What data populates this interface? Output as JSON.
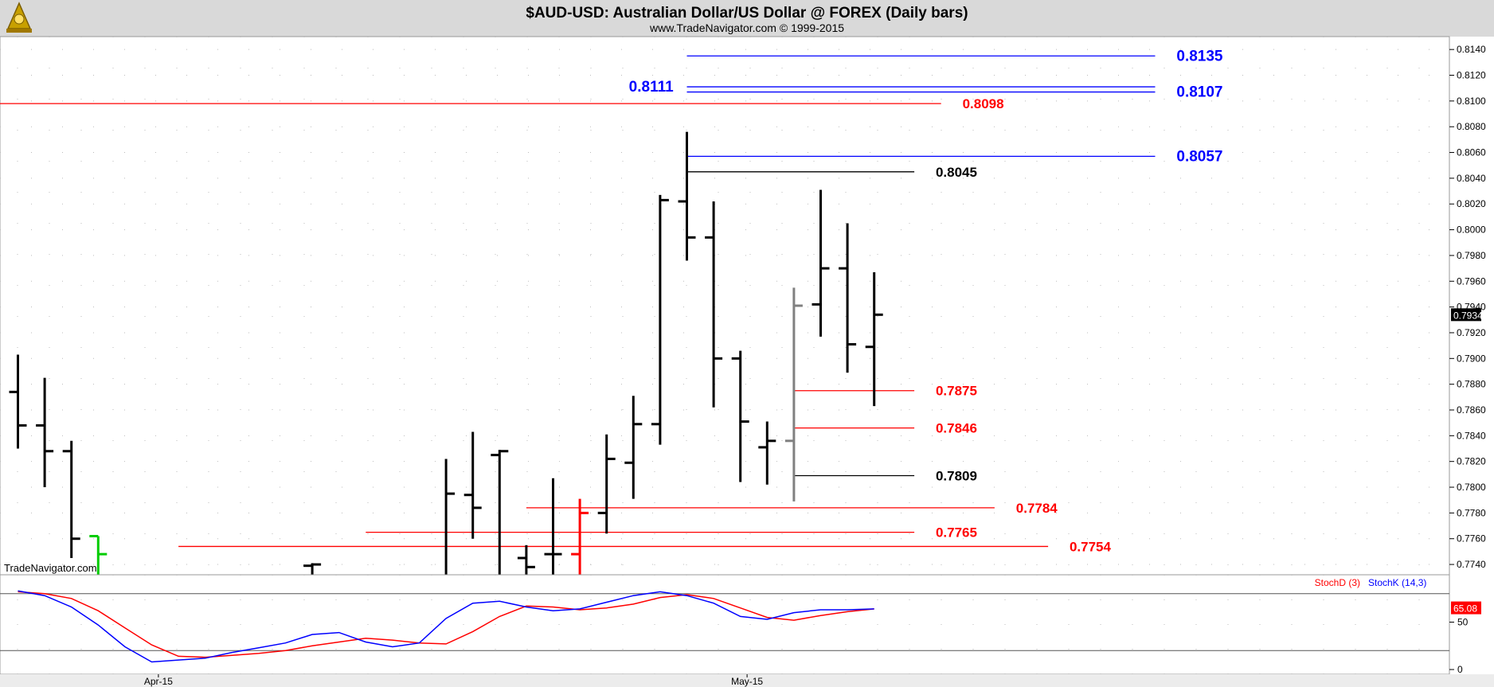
{
  "title": "$AUD-USD:  Australian Dollar/US Dollar @ FOREX  (Daily bars)",
  "subtitle": "www.TradeNavigator.com © 1999-2015",
  "watermark": "TradeNavigator.com",
  "colors": {
    "up": "#000000",
    "down": "#000000",
    "red": "#ff0000",
    "blue": "#0000ff",
    "gray": "#808080",
    "green": "#00cc00",
    "header_bg": "#d9d9d9",
    "grid": "#bbbbbb",
    "logo": "#c8a000"
  },
  "chart_data": [
    {
      "type": "ohlc",
      "title": "$AUD-USD:  Australian Dollar/US Dollar @ FOREX  (Daily bars)",
      "ylim": [
        0.7732,
        0.815
      ],
      "y_ticks": [
        "0.7740",
        "0.7760",
        "0.7780",
        "0.7800",
        "0.7820",
        "0.7840",
        "0.7860",
        "0.7880",
        "0.7900",
        "0.7920",
        "0.7940",
        "0.7960",
        "0.7980",
        "0.8000",
        "0.8020",
        "0.8040",
        "0.8060",
        "0.8080",
        "0.8100",
        "0.8120",
        "0.8140"
      ],
      "x_labels": [
        {
          "label": "Apr-15",
          "bar": 5.25
        },
        {
          "label": "May-15",
          "bar": 27.25
        }
      ],
      "last_price": "0.7934",
      "bars": [
        {
          "i": 0,
          "o": 0.7874,
          "h": 0.7903,
          "l": 0.783,
          "c": 0.7848
        },
        {
          "i": 1,
          "o": 0.7848,
          "h": 0.7885,
          "l": 0.78,
          "c": 0.7828
        },
        {
          "i": 2,
          "o": 0.7828,
          "h": 0.7836,
          "l": 0.7745,
          "c": 0.776
        },
        {
          "i": 3,
          "o": 0.7762,
          "h": 0.7762,
          "l": 0.7725,
          "c": 0.7748,
          "color": "green"
        },
        {
          "i": 11,
          "o": 0.7739,
          "h": 0.7741,
          "l": 0.772,
          "c": 0.774
        },
        {
          "i": 16,
          "o": 0.773,
          "h": 0.7822,
          "l": 0.7725,
          "c": 0.7795
        },
        {
          "i": 17,
          "o": 0.7794,
          "h": 0.7843,
          "l": 0.776,
          "c": 0.7784
        },
        {
          "i": 18,
          "o": 0.7825,
          "h": 0.7829,
          "l": 0.7725,
          "c": 0.7828
        },
        {
          "i": 19,
          "o": 0.7745,
          "h": 0.7755,
          "l": 0.772,
          "c": 0.7738
        },
        {
          "i": 20,
          "o": 0.7748,
          "h": 0.7807,
          "l": 0.7725,
          "c": 0.7748
        },
        {
          "i": 21,
          "o": 0.7748,
          "h": 0.7791,
          "l": 0.773,
          "c": 0.778,
          "color": "red"
        },
        {
          "i": 22,
          "o": 0.778,
          "h": 0.7841,
          "l": 0.7764,
          "c": 0.7822
        },
        {
          "i": 23,
          "o": 0.7819,
          "h": 0.7871,
          "l": 0.7791,
          "c": 0.7849
        },
        {
          "i": 24,
          "o": 0.7849,
          "h": 0.8027,
          "l": 0.7833,
          "c": 0.8023
        },
        {
          "i": 25,
          "o": 0.8022,
          "h": 0.8076,
          "l": 0.7976,
          "c": 0.7994
        },
        {
          "i": 26,
          "o": 0.7994,
          "h": 0.8022,
          "l": 0.7862,
          "c": 0.79
        },
        {
          "i": 27,
          "o": 0.79,
          "h": 0.7906,
          "l": 0.7804,
          "c": 0.7851
        },
        {
          "i": 28,
          "o": 0.7831,
          "h": 0.7851,
          "l": 0.7802,
          "c": 0.7836
        },
        {
          "i": 29,
          "o": 0.7836,
          "h": 0.7955,
          "l": 0.7789,
          "c": 0.7941,
          "color": "gray"
        },
        {
          "i": 30,
          "o": 0.7942,
          "h": 0.8031,
          "l": 0.7917,
          "c": 0.797
        },
        {
          "i": 31,
          "o": 0.797,
          "h": 0.8005,
          "l": 0.7889,
          "c": 0.7911
        },
        {
          "i": 32,
          "o": 0.7909,
          "h": 0.7967,
          "l": 0.7863,
          "c": 0.7934
        }
      ],
      "levels": [
        {
          "value": 0.8135,
          "label": "0.8135",
          "color": "blue",
          "from": 25,
          "to": 42.5,
          "label_at": 43.3
        },
        {
          "value": 0.8111,
          "label": "0.8111",
          "color": "blue",
          "from": 25,
          "to": 42.5,
          "label_side": "left",
          "label_at": 24.5
        },
        {
          "value": 0.8107,
          "label": "0.8107",
          "color": "blue",
          "from": 25,
          "to": 42.5,
          "label_at": 43.3
        },
        {
          "value": 0.8098,
          "label": "0.8098",
          "color": "red",
          "from": -1,
          "to": 34.5,
          "label_at": 35.3
        },
        {
          "value": 0.8057,
          "label": "0.8057",
          "color": "blue",
          "from": 25,
          "to": 42.5,
          "label_at": 43.3
        },
        {
          "value": 0.8045,
          "label": "0.8045",
          "color": "black",
          "from": 25,
          "to": 33.5,
          "label_at": 34.3
        },
        {
          "value": 0.7875,
          "label": "0.7875",
          "color": "red",
          "from": 29,
          "to": 33.5,
          "label_at": 34.3
        },
        {
          "value": 0.7846,
          "label": "0.7846",
          "color": "red",
          "from": 29,
          "to": 33.5,
          "label_at": 34.3
        },
        {
          "value": 0.7809,
          "label": "0.7809",
          "color": "black",
          "from": 29,
          "to": 33.5,
          "label_at": 34.3
        },
        {
          "value": 0.7784,
          "label": "0.7784",
          "color": "red",
          "from": 19,
          "to": 36.5,
          "label_at": 37.3
        },
        {
          "value": 0.7765,
          "label": "0.7765",
          "color": "red",
          "from": 13,
          "to": 33.5,
          "label_at": 34.3
        },
        {
          "value": 0.7754,
          "label": "0.7754",
          "color": "red",
          "from": 6,
          "to": 38.5,
          "label_at": 39.3
        }
      ]
    },
    {
      "type": "line",
      "legend": [
        "StochD (3)",
        "StochK (14,3)"
      ],
      "ylim": [
        -5,
        100
      ],
      "y_ticks": [
        "0",
        "50"
      ],
      "ref_lines": [
        20,
        80
      ],
      "last_value": "65.08",
      "series": [
        {
          "name": "StochD (3)",
          "color": "red",
          "x": [
            0,
            1,
            2,
            3,
            4,
            5,
            6,
            7,
            8,
            9,
            10,
            11,
            12,
            13,
            14,
            15,
            16,
            17,
            18,
            19,
            20,
            21,
            22,
            23,
            24,
            25,
            26,
            27,
            28,
            29,
            30,
            31,
            32
          ],
          "values": [
            82,
            80,
            75,
            62,
            44,
            26,
            14,
            13,
            15,
            17,
            20,
            25,
            29,
            33,
            31,
            28,
            27,
            40,
            56,
            67,
            66,
            63,
            65,
            69,
            76,
            79,
            75,
            65,
            55,
            52,
            57,
            61,
            64
          ]
        },
        {
          "name": "StochK (14,3)",
          "color": "blue",
          "x": [
            0,
            1,
            2,
            3,
            4,
            5,
            6,
            7,
            8,
            9,
            10,
            11,
            12,
            13,
            14,
            15,
            16,
            17,
            18,
            19,
            20,
            21,
            22,
            23,
            24,
            25,
            26,
            27,
            28,
            29,
            30,
            31,
            32
          ],
          "values": [
            83,
            78,
            66,
            47,
            24,
            8,
            10,
            12,
            18,
            23,
            28,
            37,
            39,
            29,
            24,
            28,
            54,
            70,
            72,
            66,
            62,
            64,
            71,
            78,
            82,
            78,
            70,
            56,
            53,
            60,
            63,
            63,
            64
          ]
        }
      ]
    }
  ]
}
